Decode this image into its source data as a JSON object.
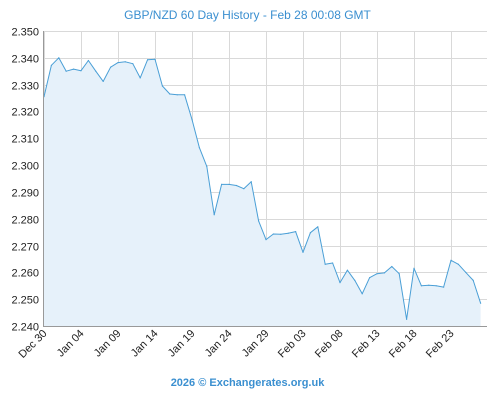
{
  "chart_data": {
    "type": "area",
    "title": "GBP/NZD 60 Day History - Feb 28 00:08 GMT",
    "xlabel": "",
    "ylabel": "",
    "ylim": [
      2.24,
      2.35
    ],
    "yticks": [
      2.24,
      2.25,
      2.26,
      2.27,
      2.28,
      2.29,
      2.3,
      2.31,
      2.32,
      2.33,
      2.34,
      2.35
    ],
    "ytick_labels": [
      "2.240",
      "2.250",
      "2.260",
      "2.270",
      "2.280",
      "2.290",
      "2.300",
      "2.310",
      "2.320",
      "2.330",
      "2.340",
      "2.350"
    ],
    "xtick_labels": [
      "Dec 30",
      "Jan 04",
      "Jan 09",
      "Jan 14",
      "Jan 19",
      "Jan 24",
      "Jan 29",
      "Feb 03",
      "Feb 08",
      "Feb 13",
      "Feb 18",
      "Feb 23"
    ],
    "xtick_index": [
      0,
      5,
      10,
      15,
      20,
      25,
      30,
      35,
      40,
      45,
      50,
      55
    ],
    "grid": true,
    "series": [
      {
        "values": [
          2.3255,
          2.3372,
          2.34,
          2.335,
          2.3358,
          2.3352,
          2.339,
          2.335,
          2.3312,
          2.3365,
          2.3382,
          2.3385,
          2.3378,
          2.3325,
          2.3393,
          2.3395,
          2.3295,
          2.3265,
          2.3262,
          2.3262,
          2.317,
          2.3065,
          2.2995,
          2.2815,
          2.2928,
          2.2928,
          2.2924,
          2.2912,
          2.2938,
          2.2792,
          2.2722,
          2.2743,
          2.2742,
          2.2746,
          2.2752,
          2.2675,
          2.2748,
          2.277,
          2.263,
          2.2635,
          2.2562,
          2.2608,
          2.257,
          2.252,
          2.258,
          2.2595,
          2.2598,
          2.2622,
          2.2595,
          2.2425,
          2.2615,
          2.255,
          2.2552,
          2.255,
          2.2545,
          2.2645,
          2.263,
          2.26,
          2.257,
          2.2485
        ]
      }
    ],
    "line_color": "#4a9fd6",
    "fill_color": "#e6f1fa",
    "grid_color": "#d9d9d9",
    "axis_color": "#999999",
    "title_color": "#3a8fd0"
  },
  "footer": {
    "text": "2026 © Exchangerates.org.uk"
  }
}
